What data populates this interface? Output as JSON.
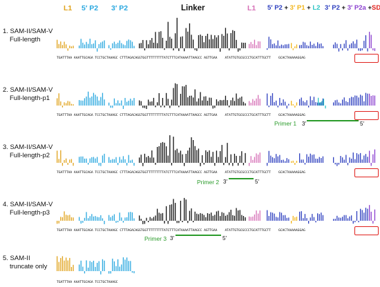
{
  "colors": {
    "L1": "#e0a21a",
    "P2_5": "#29a7df",
    "P2_3": "#29a7df",
    "linker": "#111111",
    "L1b": "#d66fb6",
    "P2_5b": "#2d3fbf",
    "P1_3": "#f2b418",
    "L2": "#2cc4c4",
    "P2_3b": "#2d3fbf",
    "P2a_3": "#8a3fcf",
    "SD": "#e0201c",
    "primer": "#2a9b2a"
  },
  "header": {
    "L1": "L1",
    "P2_5": "5′ P2",
    "P2_3": "3′ P2",
    "linker": "Linker",
    "L1b": "L1",
    "right_P2_5": "5′ P2",
    "plus1": " + ",
    "right_P1_3": "3′ P1",
    "plus2": " + ",
    "right_L2": "L2",
    "right_P2_3": "3′ P2",
    "plus3": " + ",
    "right_P2a_3": "3′ P2a",
    "plus4": " +",
    "right_SD": "SD"
  },
  "rows": [
    {
      "line1": "1. SAM-II/SAM-V",
      "line2": "Full-length"
    },
    {
      "line1": "2. SAM-II/SAM-V",
      "line2": "Full-length-p1"
    },
    {
      "line1": "3. SAM-II/SAM-V",
      "line2": "Full-length-p2"
    },
    {
      "line1": "4. SAM-II/SAM-V",
      "line2": "Full-length-p3"
    },
    {
      "line1": "5. SAM-II",
      "line2": "truncate only"
    }
  ],
  "sequence": {
    "s1": "TGATTTAA",
    "s2": "AAATTGCAGA",
    "s3": "TCCTGCTAAAGC",
    "s4": "CTTTAGACAGGTGGTTTTTTTTTATCTTTCATAAAATTAAGCC",
    "s5": "AGTTGAA",
    "s6": "ATATTGTGCGCCCTGCATTTGCTT",
    "s7": "GCACTAAAA",
    "s8": "AGGAG"
  },
  "primers": [
    {
      "label": "Primer 1",
      "end3": "3′",
      "end5": "5′"
    },
    {
      "label": "Primer 2",
      "end3": "3′",
      "end5": "5′"
    },
    {
      "label": "Primer 3",
      "end3": "3′",
      "end5": "5′"
    }
  ]
}
